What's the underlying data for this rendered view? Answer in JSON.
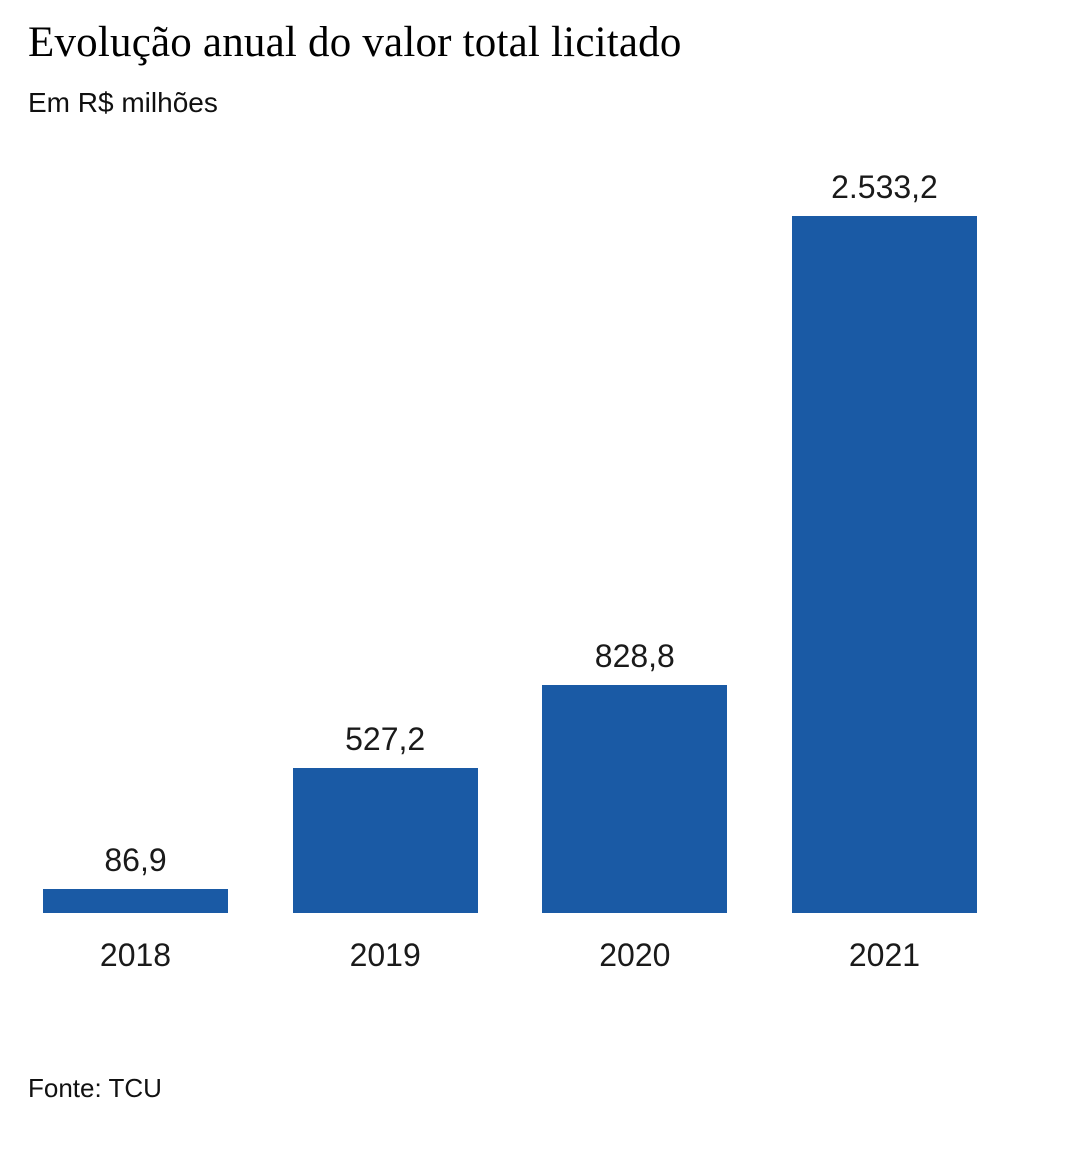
{
  "header": {
    "title": "Evolução anual do valor total licitado",
    "subtitle": "Em R$ milhões"
  },
  "footer": {
    "source": "Fonte: TCU"
  },
  "chart_data": {
    "type": "bar",
    "title": "Evolução anual do valor total licitado",
    "subtitle": "Em R$ milhões",
    "unit": "R$ milhões",
    "categories": [
      "2018",
      "2019",
      "2020",
      "2021"
    ],
    "values": [
      86.9,
      527.2,
      828.8,
      2533.2
    ],
    "value_labels": [
      "86,9",
      "527,2",
      "828,8",
      "2.533,2"
    ],
    "source": "Fonte: TCU",
    "bar_color": "#1a5aa5",
    "label_color": "#1a1a1a",
    "ylim": [
      0,
      2533.2
    ],
    "grid": false,
    "legend": false,
    "orientation": "vertical"
  }
}
